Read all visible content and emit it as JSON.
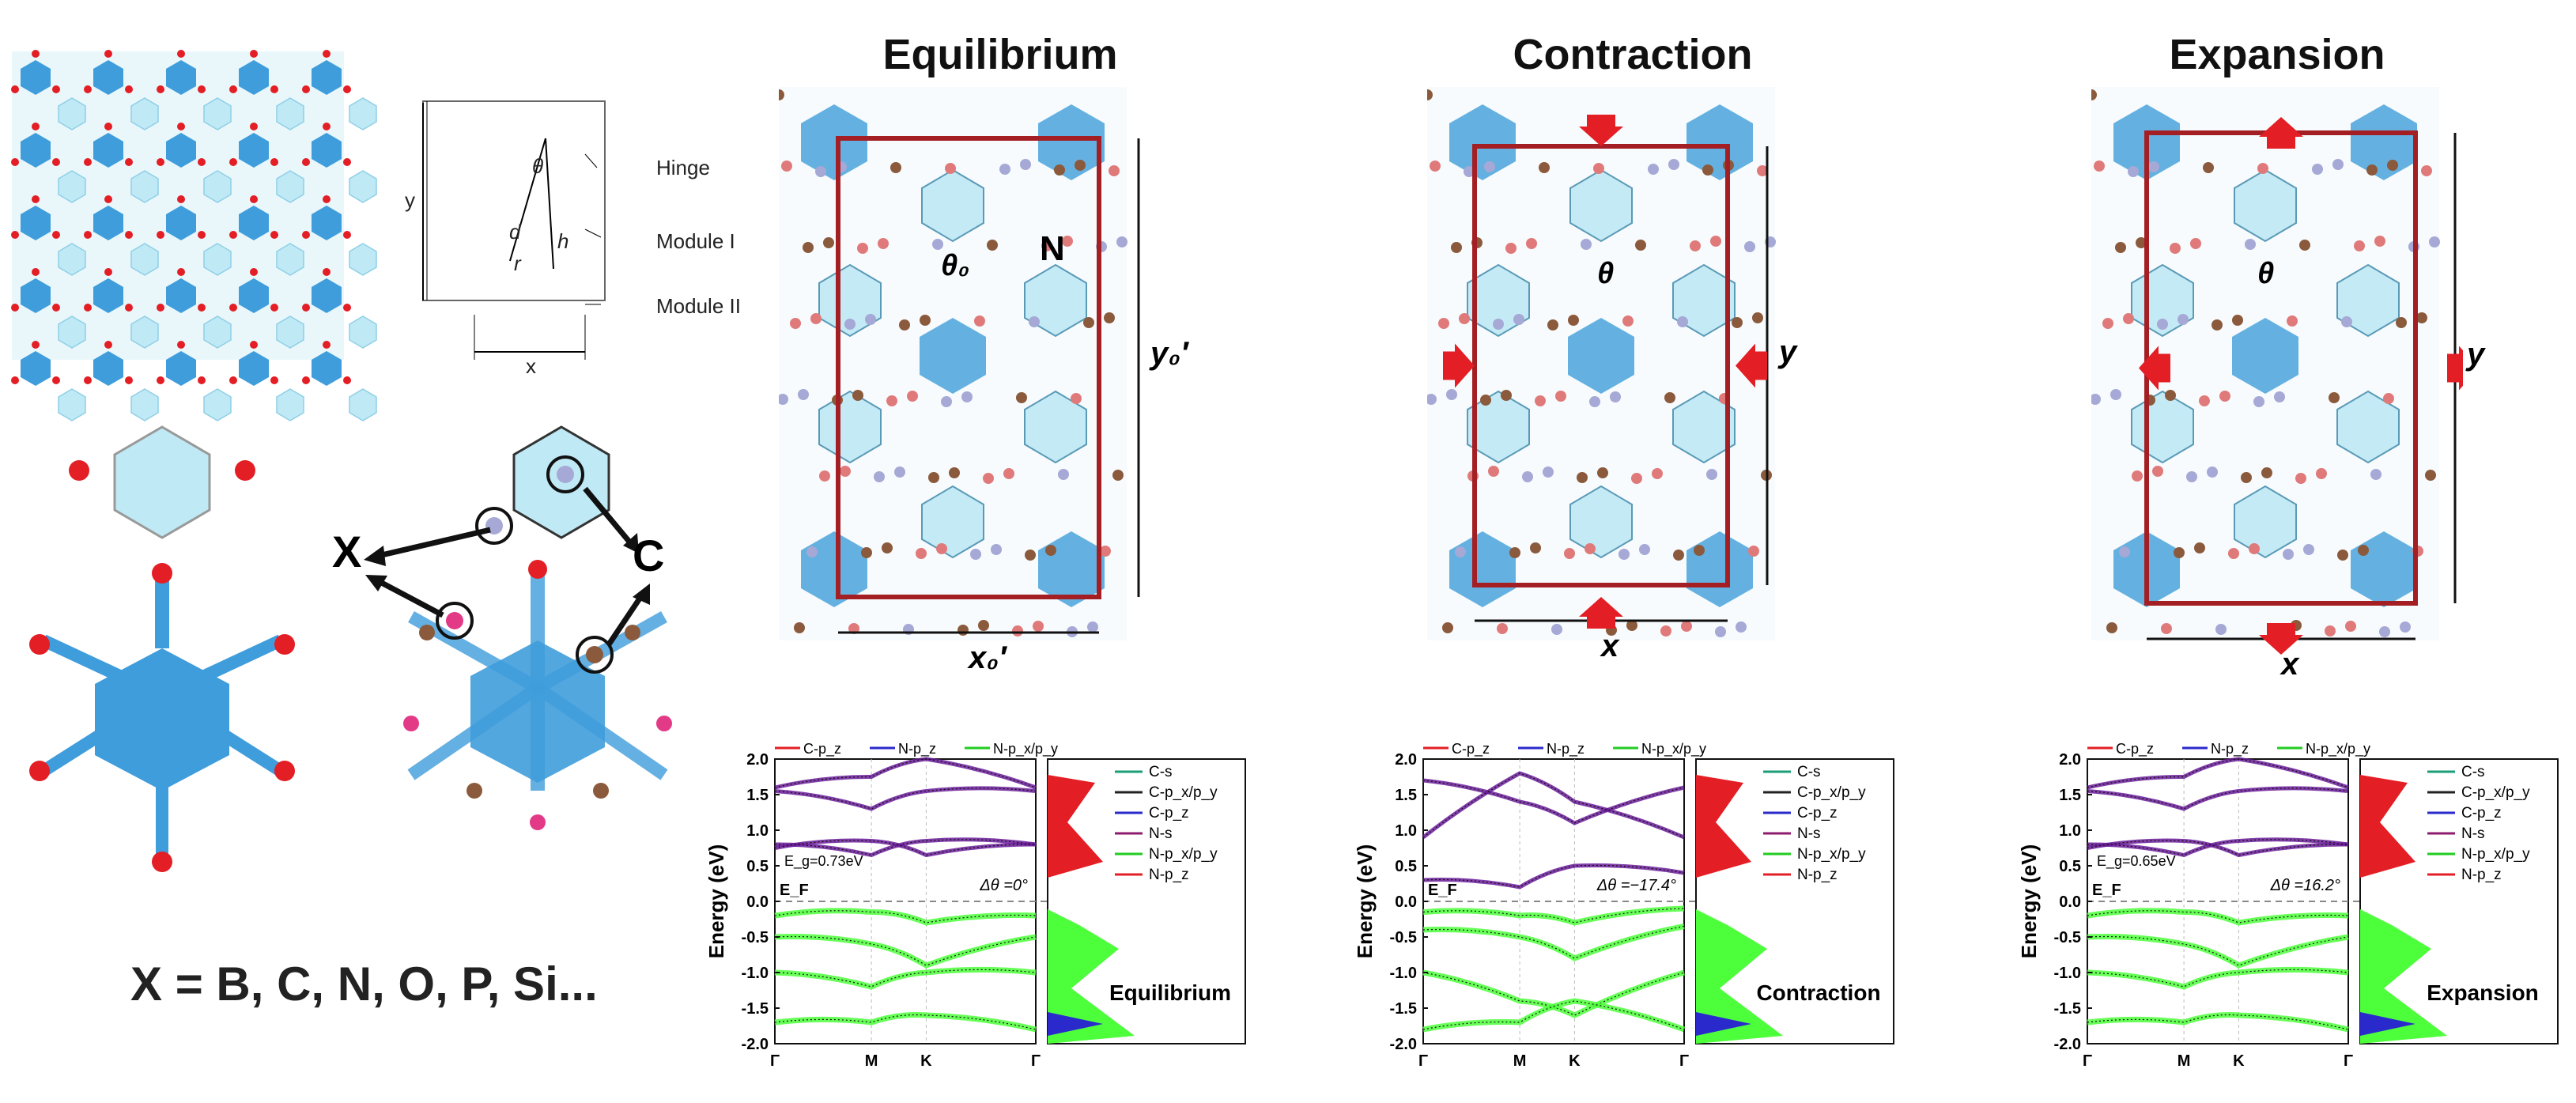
{
  "left": {
    "labels": {
      "hinge": "Hinge",
      "module1": "Module I",
      "module2": "Module II",
      "x": "x",
      "y": "y",
      "theta": "θ",
      "d": "d",
      "h": "h",
      "r": "r"
    },
    "atom_x": "X",
    "atom_c": "C",
    "formula": "X = B, C, N, O, P, Si..."
  },
  "panels": [
    {
      "title": "Equilibrium",
      "xlabel": "x₀′",
      "ylabel": "y₀′",
      "theta": "θ₀",
      "n": "N",
      "gap": "E_g=0.73eV",
      "dtheta": "Δθ =0°",
      "dos_title": "Equilibrium"
    },
    {
      "title": "Contraction",
      "xlabel": "x",
      "ylabel": "y",
      "theta": "θ",
      "n": "",
      "gap": "",
      "dtheta": "Δθ =−17.4°",
      "dos_title": "Contraction"
    },
    {
      "title": "Expansion",
      "xlabel": "x",
      "ylabel": "y",
      "theta": "θ",
      "n": "",
      "gap": "E_g=0.65eV",
      "dtheta": "Δθ =16.2°",
      "dos_title": "Expansion"
    }
  ],
  "band_common": {
    "ylabel": "Energy (eV)",
    "yticks": [
      "2.0",
      "1.5",
      "1.0",
      "0.5",
      "0.0",
      "-0.5",
      "-1.0",
      "-1.5",
      "-2.0"
    ],
    "kpoints": [
      "Γ",
      "M",
      "K",
      "Γ"
    ],
    "ef": "E_F",
    "top_legend": [
      "C-p_z",
      "N-p_z",
      "N-p_x/p_y"
    ],
    "dos_legend": [
      "C-s",
      "C-p_x/p_y",
      "C-p_z",
      "N-s",
      "N-p_x/p_y",
      "N-p_z"
    ]
  },
  "colors": {
    "blue": "#3f9ddc",
    "light_blue": "#bfe9f5",
    "red": "#e31e24",
    "dark_red": "#a31f24",
    "brown": "#8b5a3c",
    "purple_atom": "#a6a8d6",
    "band_purple": "#6a1b9a",
    "band_green": "#4cff3a"
  },
  "chart_data": {
    "type": "line",
    "series": [
      {
        "name": "C-p_z"
      },
      {
        "name": "N-p_z"
      },
      {
        "name": "N-p_x/p_y"
      }
    ],
    "ylim": [
      -2.0,
      2.0
    ],
    "ylabel": "Energy (eV)",
    "x": [
      "Γ",
      "M",
      "K",
      "Γ"
    ]
  }
}
